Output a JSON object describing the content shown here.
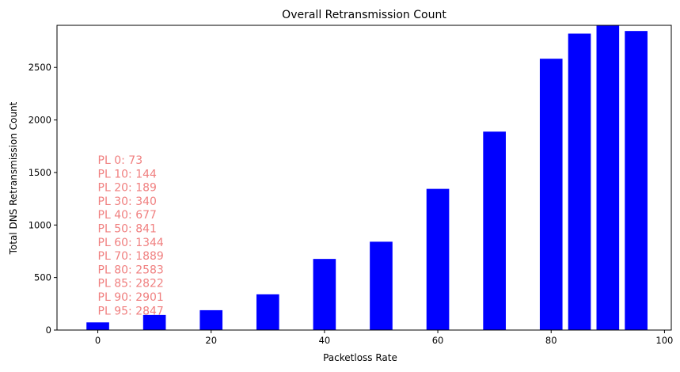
{
  "chart_data": {
    "type": "bar",
    "title": "Overall Retransmission Count",
    "xlabel": "Packetloss Rate",
    "ylabel": "Total DNS Retransmission Count",
    "x": [
      0,
      10,
      20,
      30,
      40,
      50,
      60,
      70,
      80,
      85,
      90,
      95
    ],
    "values": [
      73,
      144,
      189,
      340,
      677,
      841,
      1344,
      1889,
      2583,
      2822,
      2901,
      2847
    ],
    "bar_width": 4,
    "xlim": [
      -7.2,
      101.2
    ],
    "ylim": [
      0,
      2901
    ],
    "xticks": [
      0,
      20,
      40,
      60,
      80,
      100
    ],
    "xtick_labels": [
      "0",
      "20",
      "40",
      "60",
      "80",
      "100"
    ],
    "yticks": [
      0,
      500,
      1000,
      1500,
      2000,
      2500
    ],
    "ytick_labels": [
      "0",
      "500",
      "1000",
      "1500",
      "2000",
      "2500"
    ],
    "bar_color": "#0000ff",
    "annotation_color": "#f08080",
    "annotations": [
      "PL 0: 73",
      "PL 10: 144",
      "PL 20: 189",
      "PL 30: 340",
      "PL 40: 677",
      "PL 50: 841",
      "PL 60: 1344",
      "PL 70: 1889",
      "PL 80: 2583",
      "PL 85: 2822",
      "PL 90: 2901",
      "PL 95: 2847"
    ],
    "grid": false,
    "legend": "none"
  }
}
